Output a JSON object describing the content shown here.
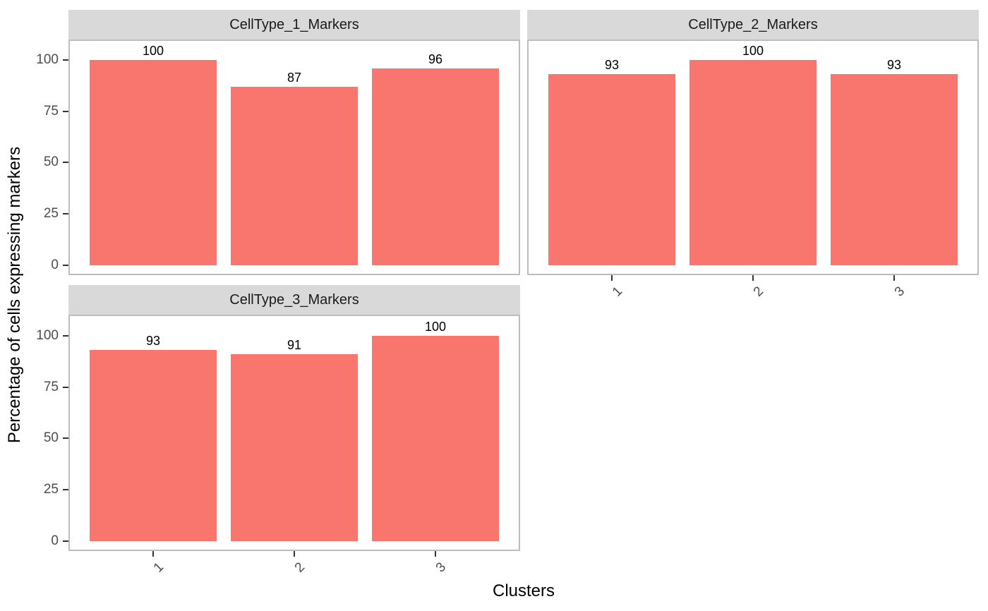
{
  "chart_data": {
    "type": "bar",
    "title": "",
    "xlabel": "Clusters",
    "ylabel": "Percentage of cells expressing markers",
    "ylim": [
      0,
      110
    ],
    "y_ticks": [
      0,
      25,
      50,
      75,
      100
    ],
    "categories": [
      "1",
      "2",
      "3"
    ],
    "facets": [
      {
        "title": "CellType_1_Markers",
        "values": [
          100,
          87,
          96
        ]
      },
      {
        "title": "CellType_2_Markers",
        "values": [
          93,
          100,
          93
        ]
      },
      {
        "title": "CellType_3_Markers",
        "values": [
          93,
          91,
          100
        ]
      }
    ],
    "bar_value_labels_shown": true,
    "legend": "none",
    "grid": false,
    "colors": {
      "bar_fill": "#F8766D",
      "strip_bg": "#D9D9D9",
      "panel_bg": "#FFFFFF",
      "panel_border": "#BDBDBD",
      "tick_mark": "#333333",
      "tick_label": "#4D4D4D",
      "title_text": "#000000",
      "background": "#FFFFFF"
    }
  }
}
